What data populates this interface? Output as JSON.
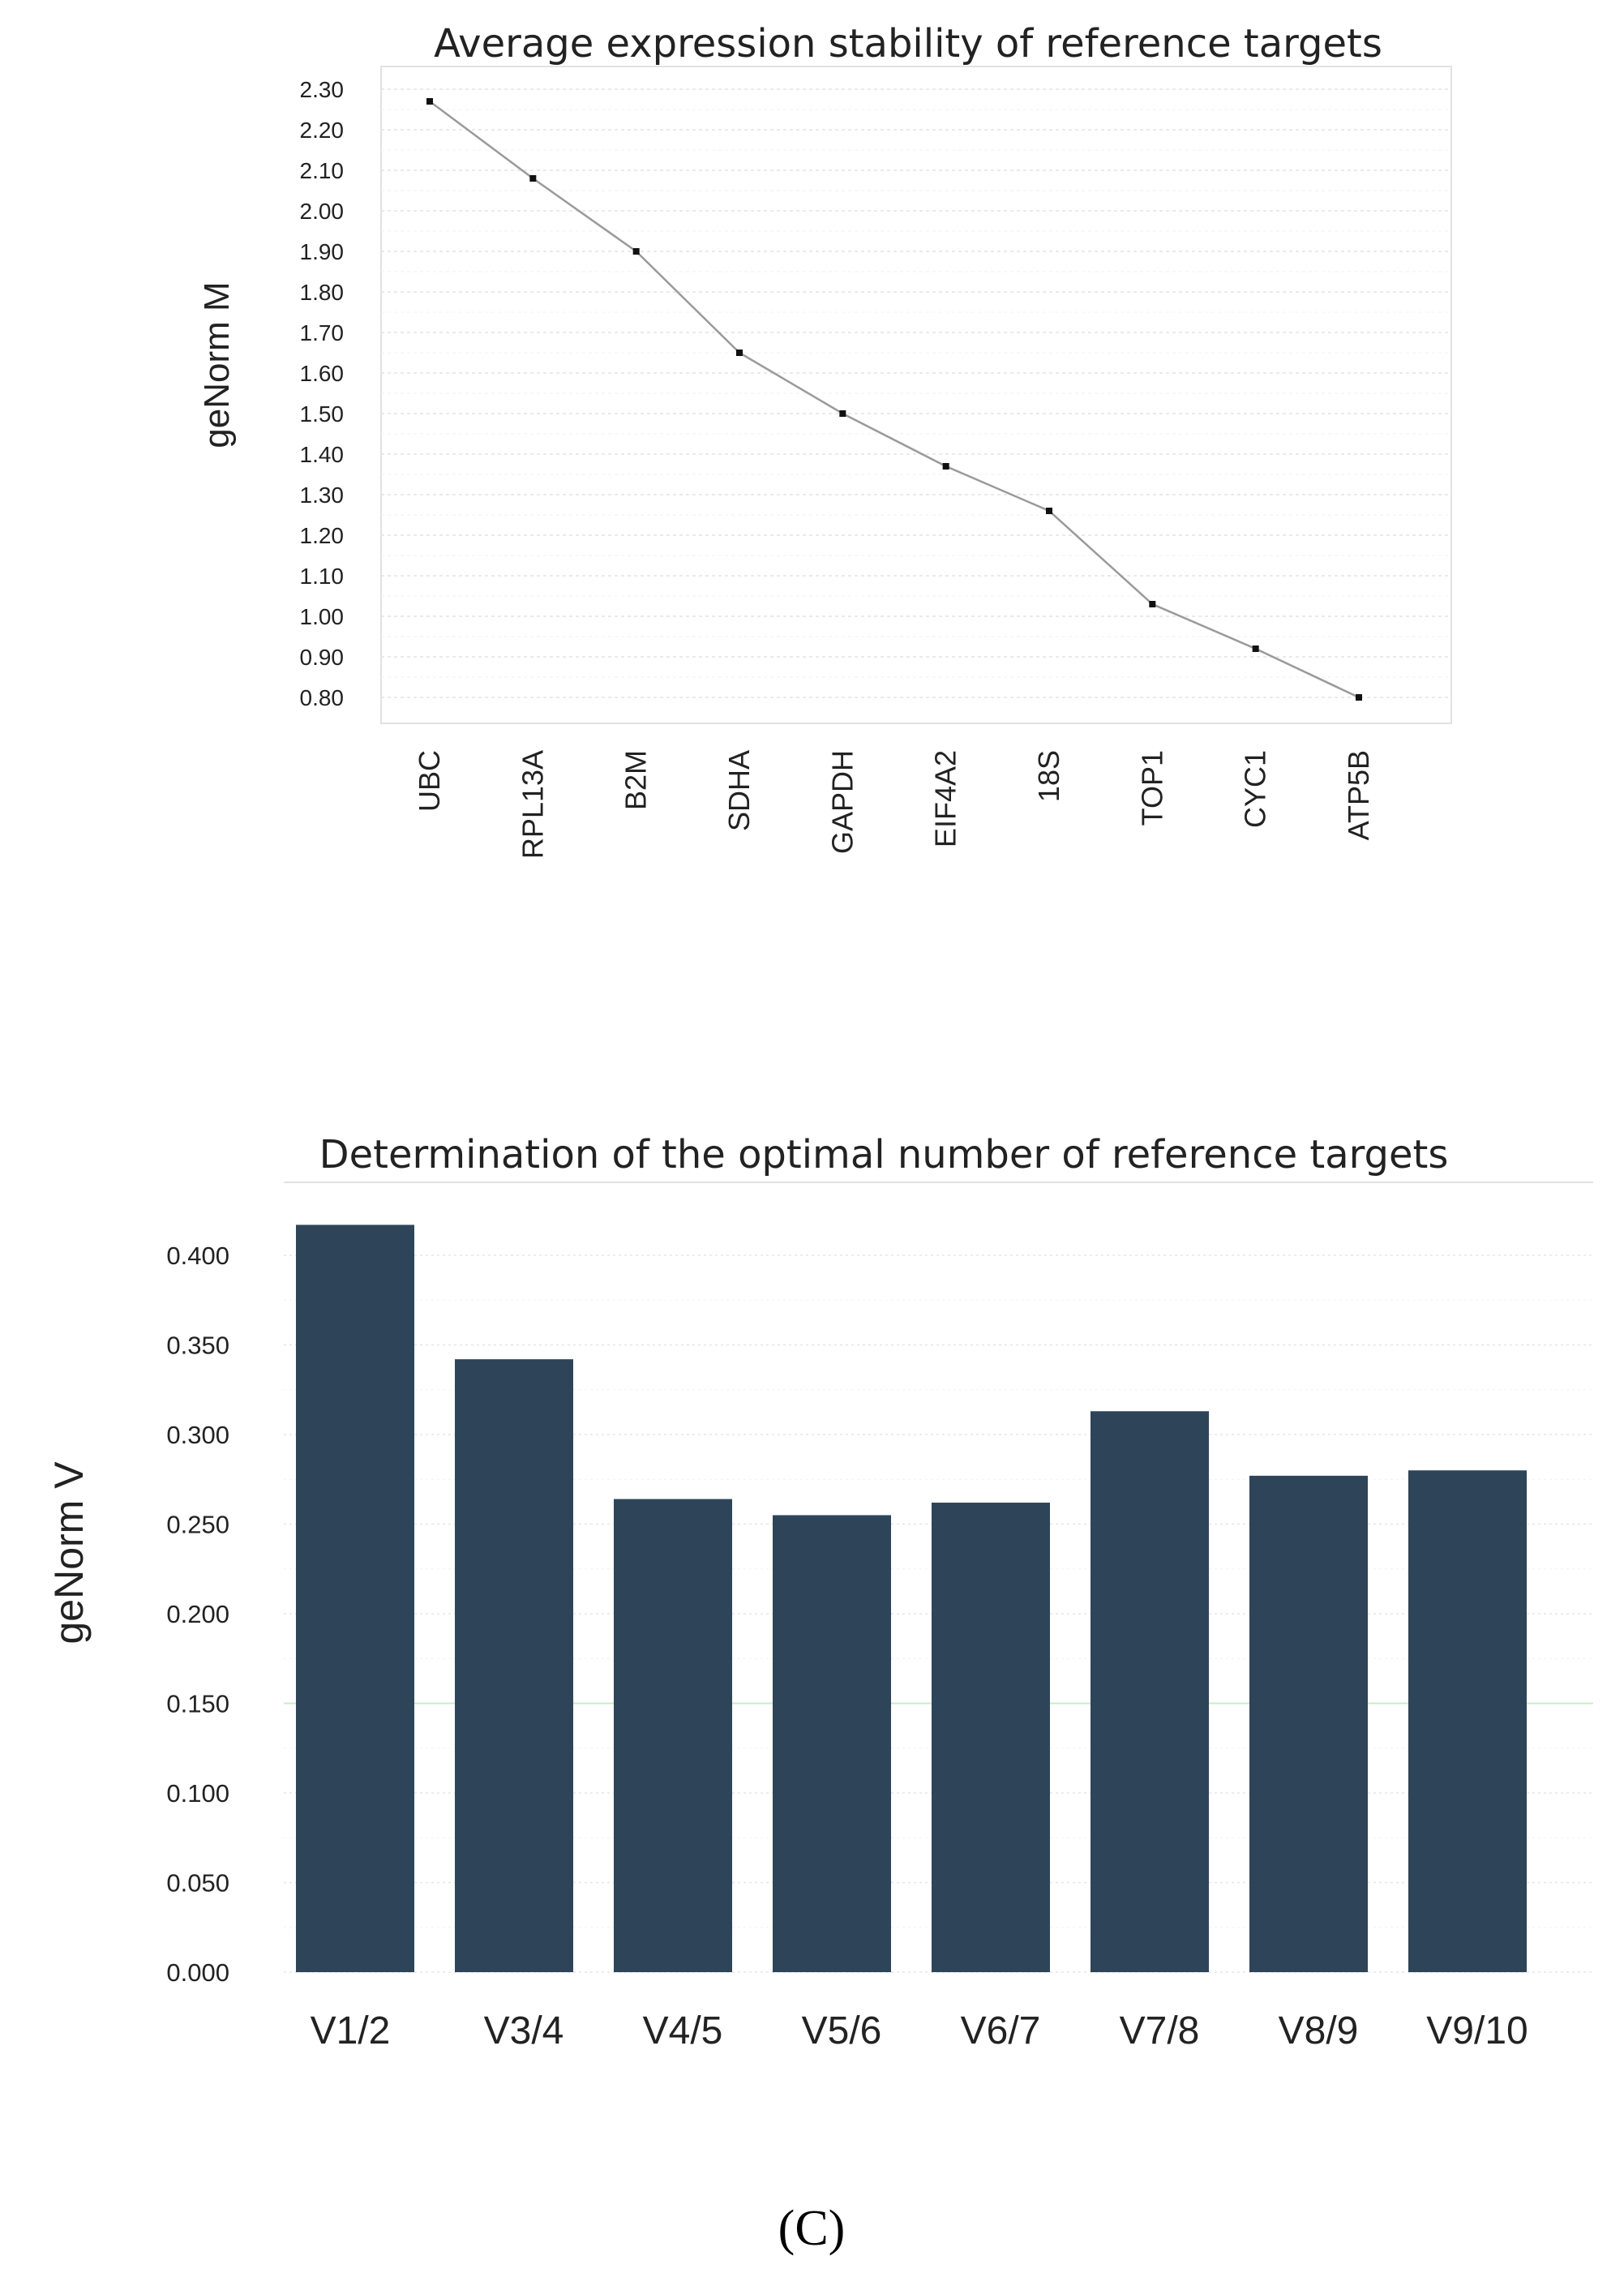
{
  "chart_data": [
    {
      "type": "line",
      "title": "Average expression stability of reference targets",
      "xlabel": "",
      "ylabel": "geNorm M",
      "ylim": [
        0.8,
        2.3
      ],
      "yticks": [
        "0.80",
        "0.90",
        "1.00",
        "1.10",
        "1.20",
        "1.30",
        "1.40",
        "1.50",
        "1.60",
        "1.70",
        "1.80",
        "1.90",
        "2.00",
        "2.10",
        "2.20",
        "2.30"
      ],
      "categories": [
        "UBC",
        "RPL13A",
        "B2M",
        "SDHA",
        "GAPDH",
        "EIF4A2",
        "18S",
        "TOP1",
        "CYC1",
        "ATP5B"
      ],
      "values": [
        2.27,
        2.08,
        1.9,
        1.65,
        1.5,
        1.37,
        1.26,
        1.03,
        0.92,
        0.8
      ],
      "grid": true,
      "line_color": "#9a9a9a",
      "marker_color": "#111111"
    },
    {
      "type": "bar",
      "title": "Determination of the optimal number of reference targets",
      "xlabel": "",
      "ylabel": "geNorm V",
      "ylim": [
        0,
        0.4
      ],
      "yticks": [
        "0.000",
        "0.050",
        "0.100",
        "0.150",
        "0.200",
        "0.250",
        "0.300",
        "0.350",
        "0.400"
      ],
      "categories": [
        "V1/2",
        "V3/4",
        "V4/5",
        "V5/6",
        "V6/7",
        "V7/8",
        "V8/9",
        "V9/10"
      ],
      "values": [
        0.417,
        0.342,
        0.264,
        0.255,
        0.262,
        0.313,
        0.277,
        0.28
      ],
      "grid": true,
      "threshold_line": 0.15,
      "bar_color": "#2e4559",
      "threshold_color": "#c8ecc8"
    }
  ],
  "caption": "(C)"
}
